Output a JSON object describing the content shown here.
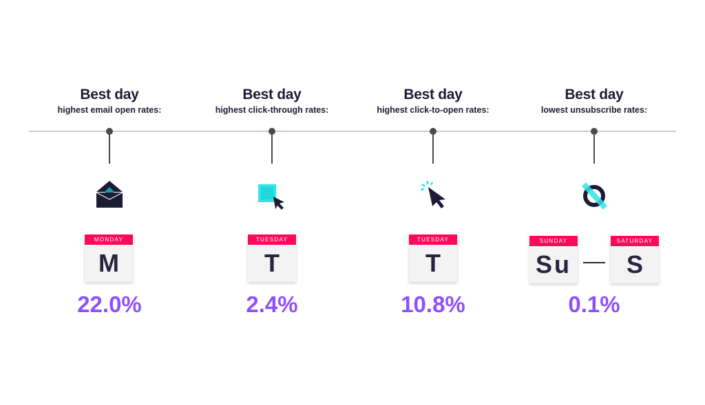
{
  "columns": [
    {
      "title": "Best day",
      "subtitle": "highest email open rates:",
      "icon": "open-envelope-icon",
      "calendars": [
        {
          "day": "MONDAY",
          "letter": "M"
        }
      ],
      "value": "22.0%"
    },
    {
      "title": "Best day",
      "subtitle": "highest click-through rates:",
      "icon": "click-square-cursor-icon",
      "calendars": [
        {
          "day": "TUESDAY",
          "letter": "T"
        }
      ],
      "value": "2.4%"
    },
    {
      "title": "Best day",
      "subtitle": "highest click-to-open rates:",
      "icon": "clicking-cursor-icon",
      "calendars": [
        {
          "day": "TUESDAY",
          "letter": "T"
        }
      ],
      "value": "10.8%"
    },
    {
      "title": "Best day",
      "subtitle": "lowest unsubscribe rates:",
      "icon": "unsubscribe-circle-icon",
      "calendars": [
        {
          "day": "SUNDAY",
          "letter": "Su"
        },
        {
          "day": "SATURDAY",
          "letter": "S"
        }
      ],
      "value": "0.1%"
    }
  ],
  "colors": {
    "accent": "#8f4fff",
    "calendar_header": "#ff0a5a",
    "cyan": "#2ee6ea",
    "dark": "#1c1b33"
  }
}
